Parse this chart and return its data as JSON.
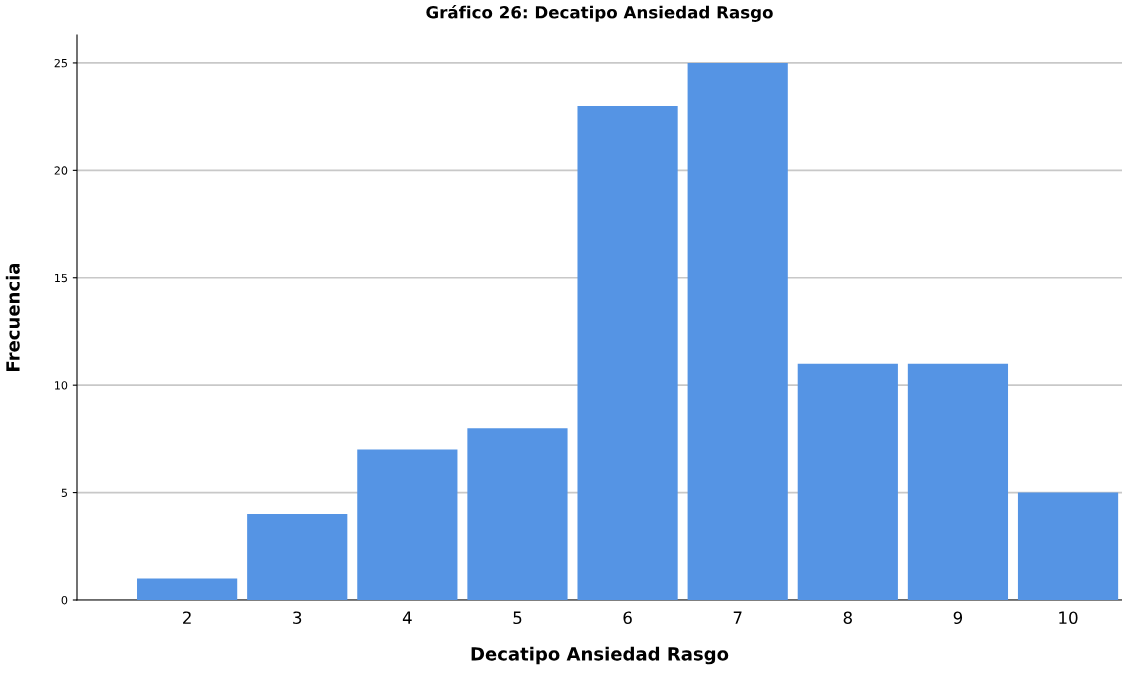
{
  "chart_data": {
    "type": "bar",
    "title": "Gráfico 26: Decatipo Ansiedad Rasgo",
    "xlabel": "Decatipo Ansiedad Rasgo",
    "ylabel": "Frecuencia",
    "categories": [
      "2",
      "3",
      "4",
      "5",
      "6",
      "7",
      "8",
      "9",
      "10"
    ],
    "values": [
      1,
      4,
      7,
      8,
      23,
      25,
      11,
      11,
      5
    ],
    "color": "#5594e4",
    "ylim": [
      0,
      26.3
    ],
    "yticks": [
      0,
      5,
      10,
      15,
      20,
      25
    ],
    "grid": "y"
  }
}
